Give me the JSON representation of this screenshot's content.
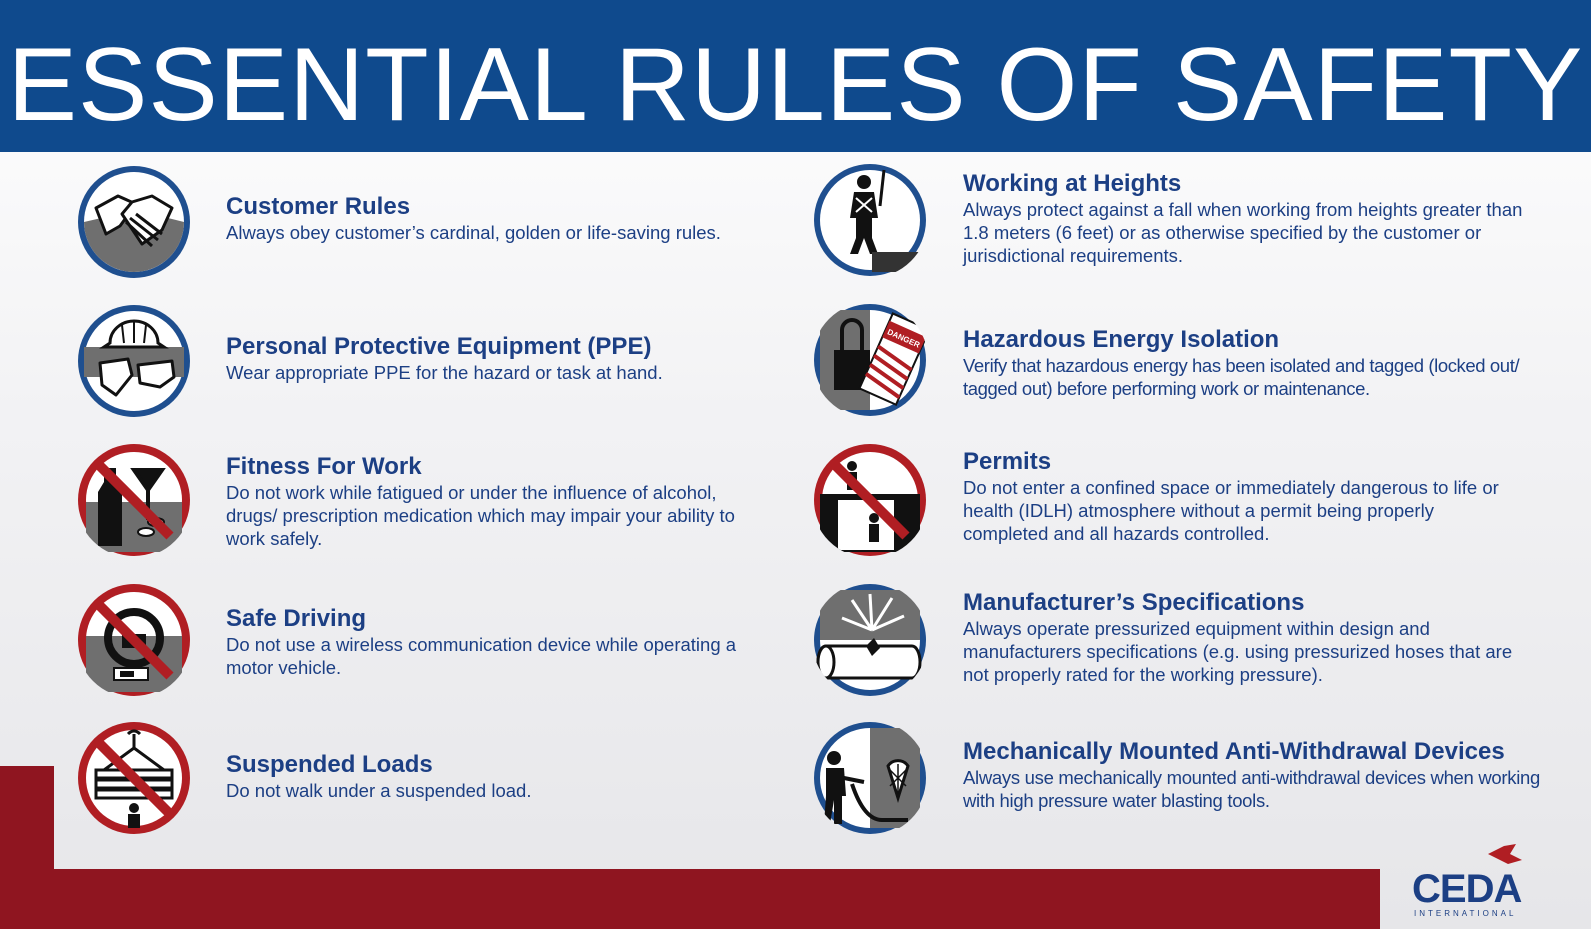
{
  "header": {
    "title": "ESSENTIAL RULES OF SAFETY"
  },
  "rules": [
    {
      "title": "Customer Rules",
      "text": "Always obey customer’s cardinal, golden or life-saving rules.",
      "icon": "handshake-icon"
    },
    {
      "title": "Personal Protective Equipment (PPE)",
      "text": "Wear appropriate PPE for the hazard or task at hand.",
      "icon": "ppe-icon"
    },
    {
      "title": "Fitness For Work",
      "text": "Do not work while fatigued or under the influence of alcohol, drugs/ prescription medication which may impair your ability to work safely.",
      "icon": "no-alcohol-drugs-icon"
    },
    {
      "title": "Safe Driving",
      "text": "Do not use a wireless communication device while operating a motor vehicle.",
      "icon": "no-phone-driving-icon"
    },
    {
      "title": "Suspended Loads",
      "text": "Do not walk under a suspended load.",
      "icon": "no-suspended-load-icon"
    },
    {
      "title": "Working at Heights",
      "text": "Always protect against a fall when working from heights greater than 1.8 meters (6 feet) or as otherwise specified by the customer or jurisdictional requirements.",
      "icon": "fall-harness-icon"
    },
    {
      "title": "Hazardous Energy Isolation",
      "text": "Verify that hazardous energy has been isolated and tagged (locked out/ tagged out) before performing work or maintenance.",
      "icon": "lockout-tag-icon",
      "tag_text": "DANGER"
    },
    {
      "title": "Permits",
      "text": "Do not enter a confined space or immediately dangerous to life or health (IDLH) atmosphere without a permit being properly completed and all hazards controlled.",
      "icon": "no-confined-space-icon"
    },
    {
      "title": "Manufacturer’s Specifications",
      "text": "Always operate pressurized equipment within design and manufacturers specifications (e.g. using pressurized hoses that are not properly rated for the working pressure).",
      "icon": "hose-burst-icon"
    },
    {
      "title": "Mechanically Mounted Anti-Withdrawal Devices",
      "text": "Always use mechanically mounted anti-withdrawal devices when working with high pressure water blasting tools.",
      "icon": "anti-withdrawal-device-icon"
    }
  ],
  "logo": {
    "name": "CEDA",
    "sub": "INTERNATIONAL"
  },
  "colors": {
    "banner": "#0f4a8d",
    "accent_red": "#8f1520",
    "text_blue": "#1c3f84",
    "ring_blue": "#1f4f8f",
    "prohibit_red": "#b01e23"
  }
}
